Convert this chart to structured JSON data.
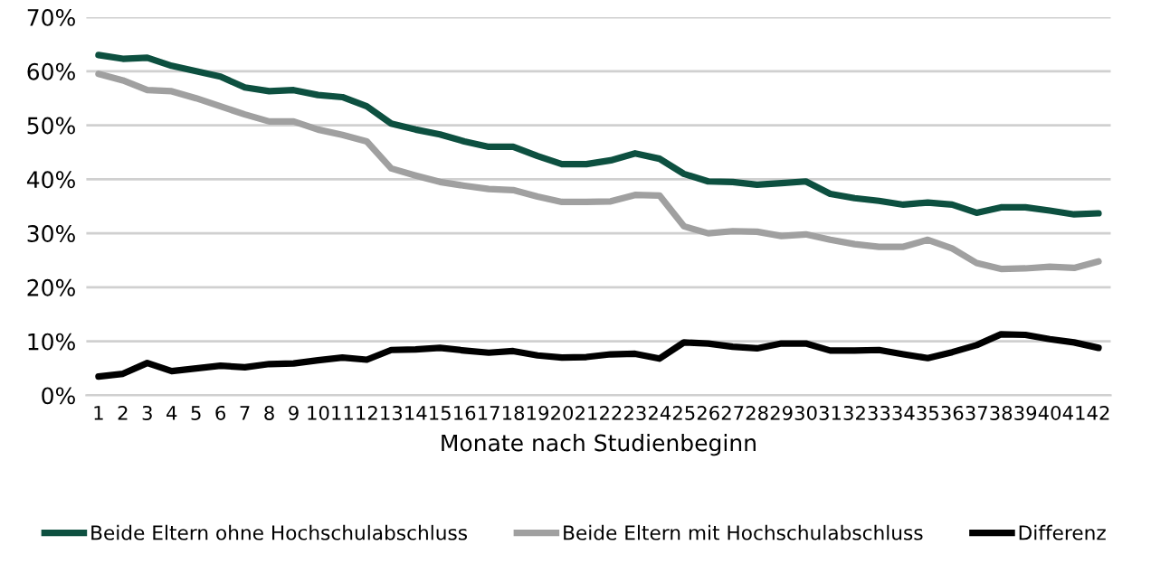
{
  "chart_data": {
    "type": "line",
    "xlabel": "Monate nach Studienbeginn",
    "categories": [
      "1",
      "2",
      "3",
      "4",
      "5",
      "6",
      "7",
      "8",
      "9",
      "10",
      "11",
      "12",
      "13",
      "14",
      "15",
      "16",
      "17",
      "18",
      "19",
      "20",
      "21",
      "22",
      "23",
      "24",
      "25",
      "26",
      "27",
      "28",
      "29",
      "30",
      "31",
      "32",
      "33",
      "34",
      "35",
      "36",
      "37",
      "38",
      "39",
      "40",
      "41",
      "42"
    ],
    "series": [
      {
        "name": "Beide Eltern ohne Hochschulabschluss",
        "color": "#0d5040",
        "values": [
          63,
          62.3,
          62.5,
          61,
          60,
          59,
          57,
          56.3,
          56.5,
          55.6,
          55.2,
          53.5,
          50.3,
          49.2,
          48.3,
          47,
          46,
          46,
          44.3,
          42.8,
          42.8,
          43.5,
          44.8,
          43.8,
          41,
          39.6,
          39.5,
          39,
          39.3,
          39.6,
          37.3,
          36.5,
          36,
          35.3,
          35.7,
          35.3,
          33.8,
          34.8,
          34.8,
          34.2,
          33.5,
          33.7
        ]
      },
      {
        "name": "Beide Eltern mit Hochschulabschluss",
        "color": "#a0a0a0",
        "values": [
          59.5,
          58.3,
          56.5,
          56.3,
          55,
          53.5,
          52,
          50.7,
          50.7,
          49.2,
          48.2,
          47,
          42,
          40.7,
          39.5,
          38.8,
          38.2,
          38,
          36.8,
          35.8,
          35.8,
          35.9,
          37.1,
          37,
          31.3,
          30,
          30.4,
          30.3,
          29.5,
          29.8,
          28.8,
          28,
          27.5,
          27.5,
          28.8,
          27.2,
          24.5,
          23.4,
          23.5,
          23.8,
          23.6,
          24.8
        ]
      },
      {
        "name": "Differenz",
        "color": "#000000",
        "values": [
          3.5,
          4,
          6,
          4.5,
          5,
          5.5,
          5.2,
          5.8,
          5.9,
          6.5,
          7,
          6.6,
          8.4,
          8.5,
          8.8,
          8.3,
          7.9,
          8.2,
          7.4,
          7,
          7.1,
          7.6,
          7.7,
          6.8,
          9.8,
          9.6,
          9,
          8.7,
          9.6,
          9.6,
          8.3,
          8.3,
          8.4,
          7.6,
          6.9,
          8,
          9.3,
          11.3,
          11.2,
          10.4,
          9.8,
          8.8
        ]
      }
    ],
    "ylim": [
      0,
      70
    ],
    "yticks": [
      {
        "value": 0,
        "label": "0%"
      },
      {
        "value": 10,
        "label": "10%"
      },
      {
        "value": 20,
        "label": "20%"
      },
      {
        "value": 30,
        "label": "30%"
      },
      {
        "value": 40,
        "label": "40%"
      },
      {
        "value": 50,
        "label": "50%"
      },
      {
        "value": 60,
        "label": "60%"
      },
      {
        "value": 70,
        "label": "70%"
      }
    ],
    "grid": "y",
    "legend": "bottom",
    "marker": "none",
    "line_style": "solid"
  }
}
